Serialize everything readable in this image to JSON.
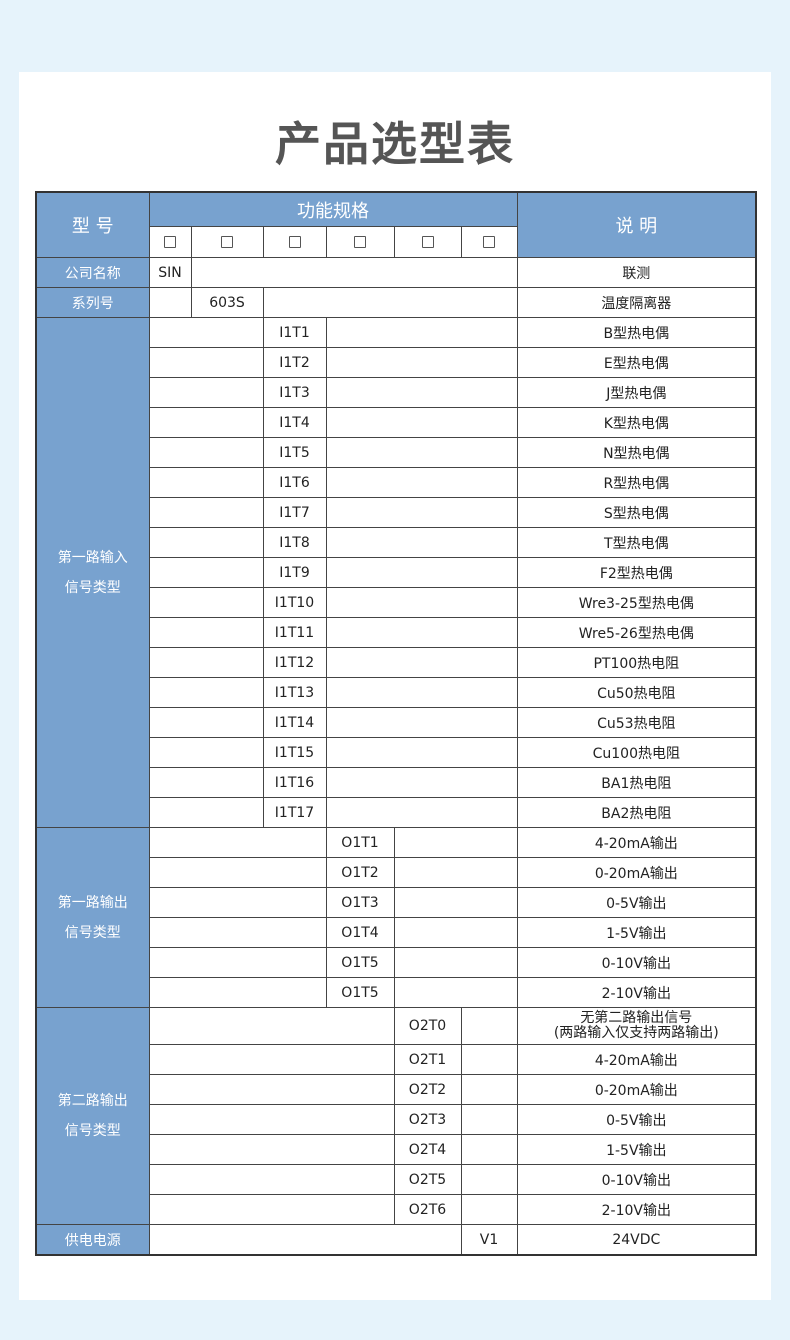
{
  "title": "产品选型表",
  "header": {
    "model": "型 号",
    "spec": "功能规格",
    "desc": "说 明",
    "checkbox_count": 6
  },
  "colors": {
    "header_blue": "#78a2cf",
    "background": "#e6f3fb",
    "title": "#555555"
  },
  "company": {
    "label": "公司名称",
    "code": "SIN",
    "desc": "联测"
  },
  "series": {
    "label": "系列号",
    "code": "603S",
    "desc": "温度隔离器"
  },
  "input1": {
    "label_line1": "第一路输入",
    "label_line2": "信号类型",
    "rows": [
      {
        "code": "I1T1",
        "desc": "B型热电偶"
      },
      {
        "code": "I1T2",
        "desc": "E型热电偶"
      },
      {
        "code": "I1T3",
        "desc": "J型热电偶"
      },
      {
        "code": "I1T4",
        "desc": "K型热电偶"
      },
      {
        "code": "I1T5",
        "desc": "N型热电偶"
      },
      {
        "code": "I1T6",
        "desc": "R型热电偶"
      },
      {
        "code": "I1T7",
        "desc": "S型热电偶"
      },
      {
        "code": "I1T8",
        "desc": "T型热电偶"
      },
      {
        "code": "I1T9",
        "desc": "F2型热电偶"
      },
      {
        "code": "I1T10",
        "desc": "Wre3-25型热电偶"
      },
      {
        "code": "I1T11",
        "desc": "Wre5-26型热电偶"
      },
      {
        "code": "I1T12",
        "desc": "PT100热电阻"
      },
      {
        "code": "I1T13",
        "desc": "Cu50热电阻"
      },
      {
        "code": "I1T14",
        "desc": "Cu53热电阻"
      },
      {
        "code": "I1T15",
        "desc": "Cu100热电阻"
      },
      {
        "code": "I1T16",
        "desc": "BA1热电阻"
      },
      {
        "code": "I1T17",
        "desc": "BA2热电阻"
      }
    ]
  },
  "output1": {
    "label_line1": "第一路输出",
    "label_line2": "信号类型",
    "rows": [
      {
        "code": "O1T1",
        "desc": "4-20mA输出"
      },
      {
        "code": "O1T2",
        "desc": "0-20mA输出"
      },
      {
        "code": "O1T3",
        "desc": "0-5V输出"
      },
      {
        "code": "O1T4",
        "desc": "1-5V输出"
      },
      {
        "code": "O1T5",
        "desc": "0-10V输出"
      },
      {
        "code": "O1T5",
        "desc": "2-10V输出"
      }
    ]
  },
  "output2": {
    "label_line1": "第二路输出",
    "label_line2": "信号类型",
    "rows": [
      {
        "code": "O2T0",
        "desc": "无第二路输出信号",
        "desc2": "(两路输入仅支持两路输出)"
      },
      {
        "code": "O2T1",
        "desc": "4-20mA输出"
      },
      {
        "code": "O2T2",
        "desc": "0-20mA输出"
      },
      {
        "code": "O2T3",
        "desc": "0-5V输出"
      },
      {
        "code": "O2T4",
        "desc": "1-5V输出"
      },
      {
        "code": "O2T5",
        "desc": "0-10V输出"
      },
      {
        "code": "O2T6",
        "desc": "2-10V输出"
      }
    ]
  },
  "power": {
    "label": "供电电源",
    "code": "V1",
    "desc": "24VDC"
  }
}
